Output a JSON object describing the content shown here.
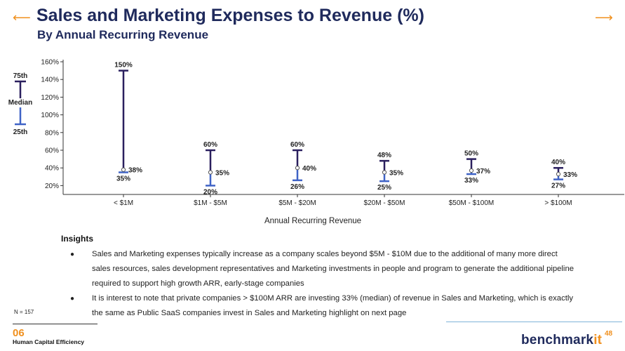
{
  "header": {
    "title": "Sales and Marketing Expenses to Revenue (%)",
    "subtitle": "By Annual Recurring Revenue"
  },
  "chart_data": {
    "type": "range",
    "xlabel": "Annual Recurring Revenue",
    "ylabel": "",
    "ylim": [
      10,
      160
    ],
    "yticks": [
      20,
      40,
      60,
      80,
      100,
      120,
      140,
      160
    ],
    "ytick_labels": [
      "20%",
      "40%",
      "60%",
      "80%",
      "100%",
      "120%",
      "140%",
      "160%"
    ],
    "categories": [
      "< $1M",
      "$1M - $5M",
      "$5M - $20M",
      "$20M - $50M",
      "$50M - $100M",
      "> $100M"
    ],
    "series": [
      {
        "name": "75th",
        "values": [
          150,
          60,
          60,
          48,
          50,
          40
        ],
        "labels": [
          "150%",
          "60%",
          "60%",
          "48%",
          "50%",
          "40%"
        ]
      },
      {
        "name": "Median",
        "values": [
          38,
          35,
          40,
          35,
          37,
          33
        ],
        "labels": [
          "38%",
          "35%",
          "40%",
          "35%",
          "37%",
          "33%"
        ]
      },
      {
        "name": "25th",
        "values": [
          35,
          20,
          26,
          25,
          33,
          27
        ],
        "labels": [
          "35%",
          "20%",
          "26%",
          "25%",
          "33%",
          "27%"
        ]
      }
    ],
    "legend": {
      "top": "75th",
      "middle": "Median",
      "bottom": "25th",
      "placement": "left"
    },
    "colors": {
      "upper": "#2a1f5e",
      "lower": "#3f63c6"
    }
  },
  "insights": {
    "title": "Insights",
    "bullets": [
      "Sales and Marketing expenses typically increase as a company scales beyond $5M - $10M due to the additional of many more direct sales resources, sales development representatives and Marketing investments in people and program to generate the additional pipeline required to support high growth ARR, early-stage companies",
      "It is interest to note that private companies > $100M ARR are investing 33% (median) of revenue in Sales and Marketing, which is exactly the same as Public SaaS companies invest in Sales and Marketing highlight on next page"
    ],
    "bullet_glyph": "●"
  },
  "footer": {
    "n_label": "N = 157",
    "section_number": "06",
    "section_name": "Human Capital Efficiency",
    "logo_main": "benchmark",
    "logo_accent": "it",
    "page_number": "48"
  },
  "decor": {
    "arrow_left": "⟵",
    "arrow_right": "⟶",
    "accent_color": "#f0901e",
    "title_color": "#1f2a5c"
  }
}
